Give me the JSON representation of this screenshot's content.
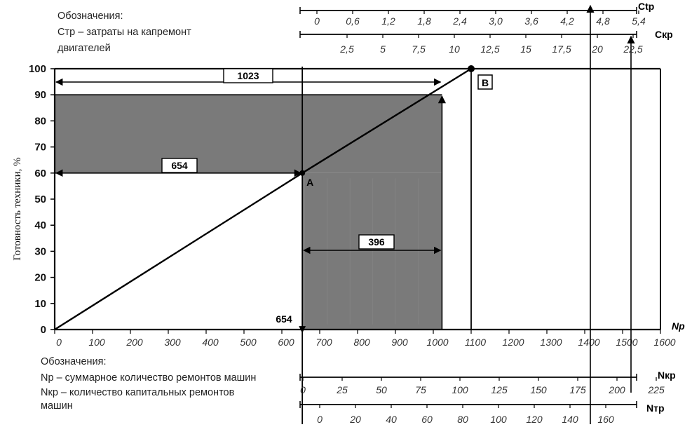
{
  "chart_data": {
    "type": "area",
    "y_axis": {
      "label": "Готовность техники, %",
      "ticks": [
        0,
        10,
        20,
        30,
        40,
        50,
        60,
        70,
        80,
        90,
        100
      ],
      "range": [
        0,
        100
      ]
    },
    "x_axis_np": {
      "name": "Nр",
      "ticks": [
        "0",
        "100",
        "200",
        "300",
        "400",
        "500",
        "600",
        "700",
        "800",
        "900",
        "1000",
        "1100",
        "1200",
        "1300",
        "1400",
        "1500",
        "1600"
      ],
      "range": [
        0,
        1600
      ]
    },
    "axis_ctr": {
      "name": "Сtр",
      "ticks": [
        "0",
        "0,6",
        "1,2",
        "1,8",
        "2,4",
        "3,0",
        "3,6",
        "4,2",
        "4,8",
        "5,4"
      ]
    },
    "axis_ckr": {
      "name": "Скр",
      "ticks": [
        "2,5",
        "5",
        "7,5",
        "10",
        "12,5",
        "15",
        "17,5",
        "20",
        "22,5"
      ]
    },
    "axis_nkr": {
      "name": "Nкр",
      "ticks": [
        "0",
        "25",
        "50",
        "75",
        "100",
        "125",
        "150",
        "175",
        "200",
        "225"
      ]
    },
    "axis_ntr": {
      "name": "Nтр",
      "ticks": [
        "0",
        "20",
        "40",
        "60",
        "80",
        "100",
        "120",
        "140",
        "160"
      ]
    },
    "series": [
      {
        "x": [
          0,
          654,
          1100
        ],
        "y": [
          0,
          60,
          100
        ]
      }
    ],
    "points": [
      {
        "label": "А",
        "x": 654,
        "y": 60
      },
      {
        "label": "В",
        "x": 1100,
        "y": 100
      }
    ],
    "dimensions": [
      {
        "label": "1023"
      },
      {
        "label": "654"
      },
      {
        "label": "396"
      },
      {
        "label": "654"
      }
    ],
    "shaded_regions": [
      "0–1023 × 60–90",
      "654–1023 × 0–90"
    ],
    "grid": false
  },
  "legend_top": {
    "title": "Обозначения:",
    "line1": "Стр – затраты на капремонт",
    "line2": "двигателей"
  },
  "legend_bottom": {
    "title": "Обозначения:",
    "line1": "Nр – суммарное количество ремонтов машин",
    "line2": "Nкр – количество капитальных ремонтов",
    "line3": "машин"
  },
  "colors": {
    "shade": "#7a7a7a",
    "line": "#000000",
    "background": "#ffffff"
  }
}
